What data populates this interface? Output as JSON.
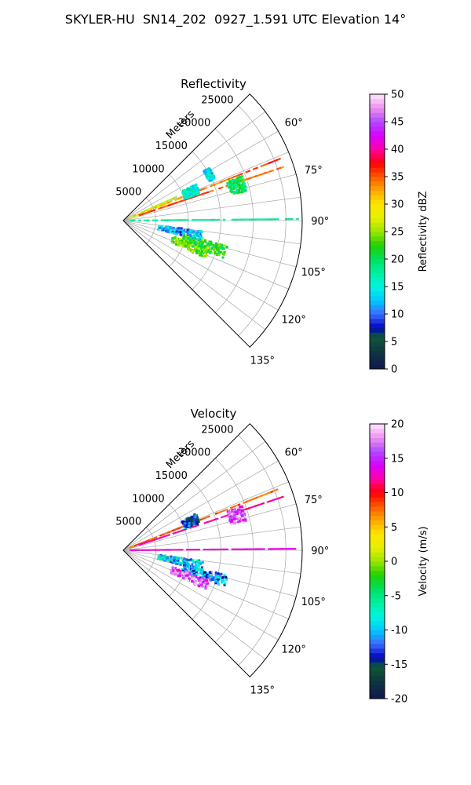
{
  "figure": {
    "suptitle": "SKYLER-HU  SN14_202  0927_1.591 UTC Elevation 14°"
  },
  "chart_data": [
    {
      "type": "heatmap",
      "projection": "polar-sector",
      "title": "Reflectivity",
      "range_label": "Meters",
      "range_ticks": [
        5000,
        10000,
        15000,
        20000,
        25000
      ],
      "range_tick_labels": [
        "5000",
        "10000",
        "15000",
        "20000",
        "25000"
      ],
      "rmax": 27500,
      "theta_range": [
        45,
        135
      ],
      "theta_ticks": [
        60,
        75,
        90,
        105,
        120,
        135
      ],
      "theta_tick_labels": [
        "60°",
        "75°",
        "90°",
        "105°",
        "120°",
        "135°"
      ],
      "grid": true,
      "colorbar": {
        "label": "Reflectivity dBZ",
        "range": [
          0,
          50
        ],
        "ticks": [
          0,
          5,
          10,
          15,
          20,
          25,
          30,
          35,
          40,
          45,
          50
        ],
        "tick_labels": [
          "0",
          "5",
          "10",
          "15",
          "20",
          "25",
          "30",
          "35",
          "40",
          "45",
          "50"
        ]
      },
      "echoes": [
        {
          "feature": "radial",
          "azimuth": 68.5,
          "range": [
            1000,
            26000
          ],
          "value": 30,
          "value_far": 37
        },
        {
          "feature": "radial",
          "azimuth": 71.5,
          "range": [
            2500,
            26000
          ],
          "value": 36,
          "value_far": 34
        },
        {
          "feature": "radial",
          "azimuth": 89.5,
          "range": [
            1000,
            27000
          ],
          "value": 18
        },
        {
          "feature": "radial",
          "azimuth": 66,
          "range": [
            1500,
            9000
          ],
          "value": 26
        },
        {
          "feature": "cell",
          "azimuth": 73,
          "range": [
            17000,
            19500
          ],
          "value": 20
        },
        {
          "feature": "cell",
          "azimuth": 67,
          "range": [
            10000,
            12500
          ],
          "value": 16
        },
        {
          "feature": "cell",
          "azimuth": 62,
          "range": [
            14500,
            15500
          ],
          "value": 14
        },
        {
          "feature": "cell",
          "azimuth": 101,
          "range": [
            5500,
            12500
          ],
          "value": 12
        },
        {
          "feature": "cell",
          "azimuth": 107,
          "range": [
            9500,
            16500
          ],
          "value": 22
        },
        {
          "feature": "cell",
          "azimuth": 111,
          "range": [
            8000,
            14000
          ],
          "value": 24
        }
      ]
    },
    {
      "type": "heatmap",
      "projection": "polar-sector",
      "title": "Velocity",
      "range_label": "Meters",
      "range_ticks": [
        5000,
        10000,
        15000,
        20000,
        25000
      ],
      "range_tick_labels": [
        "5000",
        "10000",
        "15000",
        "20000",
        "25000"
      ],
      "rmax": 27500,
      "theta_range": [
        45,
        135
      ],
      "theta_ticks": [
        60,
        75,
        90,
        105,
        120,
        135
      ],
      "theta_tick_labels": [
        "60°",
        "75°",
        "90°",
        "105°",
        "120°",
        "135°"
      ],
      "grid": true,
      "colorbar": {
        "label": "Velocity (m/s)",
        "range": [
          -20,
          20
        ],
        "ticks": [
          -20,
          -15,
          -10,
          -5,
          0,
          5,
          10,
          15,
          20
        ],
        "tick_labels": [
          "-20",
          "-15",
          "-10",
          "-5",
          "0",
          "5",
          "10",
          "15",
          "20"
        ]
      },
      "echoes": [
        {
          "feature": "radial",
          "azimuth": 68.5,
          "range": [
            1000,
            26000
          ],
          "value": 8
        },
        {
          "feature": "radial",
          "azimuth": 71.5,
          "range": [
            2500,
            26000
          ],
          "value": 12
        },
        {
          "feature": "radial",
          "azimuth": 89.5,
          "range": [
            1000,
            27000
          ],
          "value": 13
        },
        {
          "feature": "cell",
          "azimuth": 73,
          "range": [
            17000,
            19500
          ],
          "value": 16
        },
        {
          "feature": "cell",
          "azimuth": 67,
          "range": [
            10000,
            12500
          ],
          "value": -13
        },
        {
          "feature": "cell",
          "azimuth": 101,
          "range": [
            5500,
            12500
          ],
          "value": -9
        },
        {
          "feature": "cell",
          "azimuth": 107,
          "range": [
            9500,
            16500
          ],
          "value": -11
        },
        {
          "feature": "cell",
          "azimuth": 112,
          "range": [
            8000,
            14000
          ],
          "value": 16
        }
      ]
    }
  ]
}
